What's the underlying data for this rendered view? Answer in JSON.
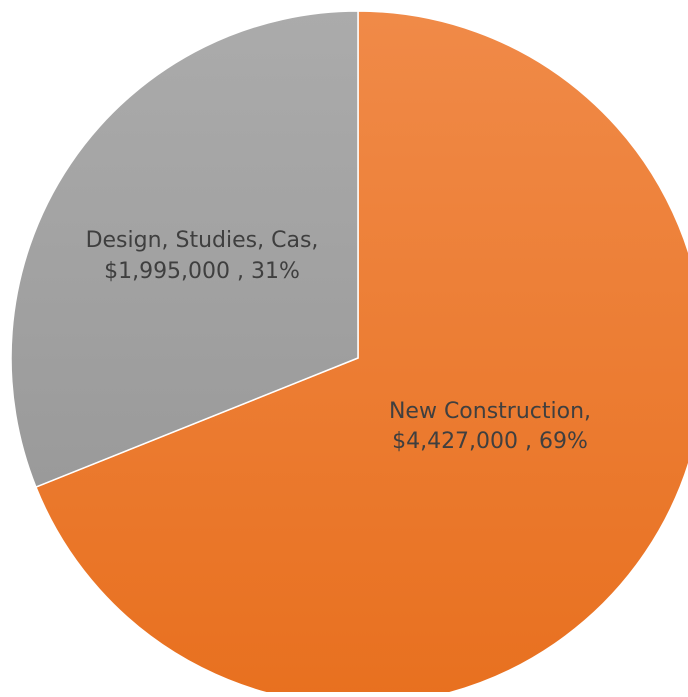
{
  "chart_data": {
    "type": "pie",
    "slices": [
      {
        "name": "New Construction",
        "value": 4427000,
        "percent": 69,
        "label_line1": "New Construction,",
        "label_line2": "$4,427,000 , 69%",
        "color": "#ed7d31"
      },
      {
        "name": "Design, Studies, Cas",
        "value": 1995000,
        "percent": 31,
        "label_line1": "Design, Studies, Cas,",
        "label_line2": "$1,995,000 , 31%",
        "color": "#a5a5a5"
      }
    ],
    "start_angle_deg": 0,
    "direction": "clockwise",
    "legend": "none"
  }
}
